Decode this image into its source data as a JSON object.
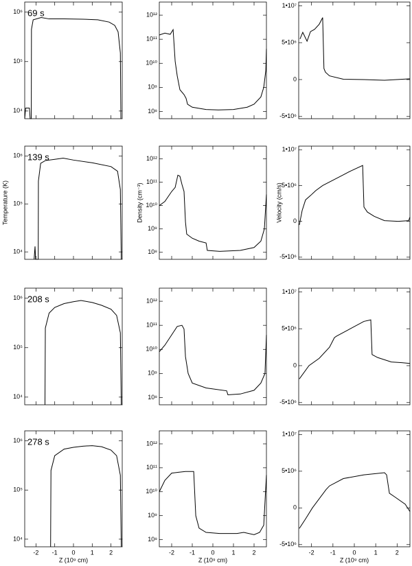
{
  "chart_data": [
    {
      "type": "line",
      "annotation": "69 s",
      "color": "#000000",
      "log_scale": true,
      "xtick_labels": false,
      "x": [
        -2.6,
        -2.55,
        -2.35,
        -2.31,
        -2.25,
        -2.24,
        -2.15,
        -1.72,
        -1.3,
        -0.5,
        0.5,
        1.3,
        1.9,
        2.2,
        2.38,
        2.5,
        2.53
      ],
      "values": [
        7000,
        11500,
        11500,
        7000,
        7000,
        450000,
        700000,
        780000,
        730000,
        730000,
        720000,
        700000,
        630000,
        540000,
        400000,
        150000,
        7000
      ],
      "xlim": [
        -2.6,
        2.6
      ],
      "xticks": [
        -2,
        -1,
        0,
        1,
        2
      ],
      "ylim": [
        7000,
        1600000
      ],
      "yticks": [
        {
          "value": 10000,
          "label": "10⁴"
        },
        {
          "value": 100000,
          "label": "10⁵"
        },
        {
          "value": 1000000,
          "label": "10⁶"
        }
      ]
    },
    {
      "type": "line",
      "color": "#000000",
      "log_scale": true,
      "xtick_labels": false,
      "x": [
        -2.6,
        -2.33,
        -2.07,
        -1.93,
        -1.83,
        -1.73,
        -1.6,
        -1.4,
        -1.3,
        -1.23,
        -1.0,
        -0.33,
        0.27,
        1.0,
        1.67,
        2.0,
        2.33,
        2.47,
        2.57,
        2.6
      ],
      "values": [
        150000000000.0,
        180000000000.0,
        160000000000.0,
        250000000000.0,
        12000000000.0,
        3000000000.0,
        800000000.0,
        500000000.0,
        350000000.0,
        200000000.0,
        150000000.0,
        120000000.0,
        115000000.0,
        120000000.0,
        150000000.0,
        200000000.0,
        400000000.0,
        1000000000.0,
        5000000000.0,
        40000000000.0
      ],
      "xlim": [
        -2.6,
        2.6
      ],
      "xticks": [
        -2,
        -1,
        0,
        1,
        2
      ],
      "ylim": [
        50000000.0,
        3500000000000.0
      ],
      "yticks": [
        {
          "value": 100000000.0,
          "label": "10⁸"
        },
        {
          "value": 1000000000.0,
          "label": "10⁹"
        },
        {
          "value": 10000000000.0,
          "label": "10¹⁰"
        },
        {
          "value": 100000000000.0,
          "label": "10¹¹"
        },
        {
          "value": 1000000000000.0,
          "label": "10¹²"
        }
      ]
    },
    {
      "type": "line",
      "color": "#000000",
      "log_scale": false,
      "xtick_labels": false,
      "x": [
        -2.54,
        -2.41,
        -2.21,
        -2.05,
        -1.86,
        -1.64,
        -1.48,
        -1.42,
        -1.35,
        -1.16,
        -0.51,
        0.45,
        1.41,
        2.6
      ],
      "values": [
        5500000,
        6400000,
        5200000,
        6500000,
        6800000,
        7500000,
        8400000,
        1500000,
        1000000,
        500000,
        50000,
        0,
        -100000,
        100000
      ],
      "xlim": [
        -2.6,
        2.6
      ],
      "xticks": [
        -2,
        -1,
        0,
        1,
        2
      ],
      "ylim": [
        -5300000,
        10500000
      ],
      "yticks": [
        {
          "value": -5000000,
          "label": "-5•10⁶"
        },
        0,
        {
          "value": 5000000,
          "label": "5•10⁶"
        },
        {
          "value": 10000000,
          "label": "1•10⁷"
        }
      ]
    },
    {
      "type": "line",
      "annotation": "139 s",
      "y_label": "Temperature (K)",
      "color": "#000000",
      "log_scale": true,
      "xtick_labels": false,
      "x": [
        -2.1,
        -2.05,
        -2.02,
        -1.88,
        -1.87,
        -1.75,
        -1.5,
        -1,
        -0.55,
        0,
        1,
        2,
        2.35,
        2.5,
        2.55
      ],
      "values": [
        7000,
        13000,
        7000,
        7000,
        300000,
        700000,
        800000,
        850000,
        900000,
        820000,
        720000,
        600000,
        480000,
        200000,
        7000
      ],
      "xlim": [
        -2.6,
        2.6
      ],
      "xticks": [
        -2,
        -1,
        0,
        1,
        2
      ],
      "ylim": [
        7000,
        1600000
      ],
      "yticks": [
        {
          "value": 10000,
          "label": "10⁴"
        },
        {
          "value": 100000,
          "label": "10⁵"
        },
        {
          "value": 1000000,
          "label": "10⁶"
        }
      ]
    },
    {
      "type": "line",
      "y_label": "Density (cm⁻³)",
      "color": "#000000",
      "log_scale": true,
      "xtick_labels": false,
      "x": [
        -2.6,
        -2.33,
        -2.0,
        -1.83,
        -1.7,
        -1.6,
        -1.5,
        -1.4,
        -1.33,
        -1.27,
        -1.0,
        -0.67,
        -0.33,
        -0.27,
        0.33,
        1.33,
        2.0,
        2.33,
        2.5,
        2.6
      ],
      "values": [
        10000000000.0,
        15000000000.0,
        40000000000.0,
        60000000000.0,
        200000000000.0,
        180000000000.0,
        80000000000.0,
        40000000000.0,
        2000000000.0,
        600000000.0,
        400000000.0,
        300000000.0,
        250000000.0,
        120000000.0,
        110000000.0,
        120000000.0,
        160000000.0,
        300000000.0,
        1000000000.0,
        30000000000.0
      ],
      "xlim": [
        -2.6,
        2.6
      ],
      "xticks": [
        -2,
        -1,
        0,
        1,
        2
      ],
      "ylim": [
        50000000.0,
        3500000000000.0
      ],
      "yticks": [
        {
          "value": 100000000.0,
          "label": "10⁸"
        },
        {
          "value": 1000000000.0,
          "label": "10⁹"
        },
        {
          "value": 10000000000.0,
          "label": "10¹⁰"
        },
        {
          "value": 100000000000.0,
          "label": "10¹¹"
        },
        {
          "value": 1000000000000.0,
          "label": "10¹²"
        }
      ]
    },
    {
      "type": "line",
      "y_label": "Velocity (cm/s)",
      "color": "#000000",
      "log_scale": false,
      "xtick_labels": false,
      "x": [
        -2.57,
        -2.44,
        -2.28,
        -2.05,
        -1.8,
        -1.48,
        -0.83,
        -0.19,
        0.39,
        0.45,
        0.61,
        0.93,
        1.41,
        2.05,
        2.54,
        2.6
      ],
      "values": [
        -500000,
        1500000,
        3000000,
        3600000,
        4300000,
        5000000,
        6000000,
        7000000,
        7800000,
        2000000,
        1300000,
        700000,
        100000,
        0,
        100000,
        600000
      ],
      "xlim": [
        -2.6,
        2.6
      ],
      "xticks": [
        -2,
        -1,
        0,
        1,
        2
      ],
      "ylim": [
        -5300000,
        10500000
      ],
      "yticks": [
        {
          "value": -5000000,
          "label": "-5•10⁶"
        },
        0,
        {
          "value": 5000000,
          "label": "5•10⁶"
        },
        {
          "value": 10000000,
          "label": "1•10⁷"
        }
      ]
    },
    {
      "type": "line",
      "annotation": "208 s",
      "color": "#000000",
      "log_scale": true,
      "xtick_labels": false,
      "x": [
        -1.52,
        -1.5,
        -1.3,
        -1,
        -0.5,
        0,
        0.4,
        1,
        1.5,
        2,
        2.3,
        2.5,
        2.55
      ],
      "values": [
        7000,
        250000,
        500000,
        650000,
        780000,
        850000,
        900000,
        820000,
        720000,
        600000,
        450000,
        200000,
        7000
      ],
      "xlim": [
        -2.6,
        2.6
      ],
      "xticks": [
        -2,
        -1,
        0,
        1,
        2
      ],
      "ylim": [
        7000,
        1600000
      ],
      "yticks": [
        {
          "value": 10000,
          "label": "10⁴"
        },
        {
          "value": 100000,
          "label": "10⁵"
        },
        {
          "value": 1000000,
          "label": "10⁶"
        }
      ]
    },
    {
      "type": "line",
      "color": "#000000",
      "log_scale": true,
      "xtick_labels": false,
      "x": [
        -2.6,
        -2.33,
        -2.0,
        -1.73,
        -1.5,
        -1.4,
        -1.33,
        -1.2,
        -1.0,
        -0.33,
        0.67,
        0.73,
        1.33,
        2.0,
        2.33,
        2.53,
        2.6
      ],
      "values": [
        8000000000.0,
        15000000000.0,
        40000000000.0,
        90000000000.0,
        100000000000.0,
        70000000000.0,
        5000000000.0,
        1000000000.0,
        400000000.0,
        250000000.0,
        190000000.0,
        130000000.0,
        140000000.0,
        200000000.0,
        400000000.0,
        1000000000.0,
        40000000000.0
      ],
      "xlim": [
        -2.6,
        2.6
      ],
      "xticks": [
        -2,
        -1,
        0,
        1,
        2
      ],
      "ylim": [
        50000000.0,
        3500000000000.0
      ],
      "yticks": [
        {
          "value": 100000000.0,
          "label": "10⁸"
        },
        {
          "value": 1000000000.0,
          "label": "10⁹"
        },
        {
          "value": 10000000000.0,
          "label": "10¹⁰"
        },
        {
          "value": 100000000000.0,
          "label": "10¹¹"
        },
        {
          "value": 1000000000000.0,
          "label": "10¹²"
        }
      ]
    },
    {
      "type": "line",
      "color": "#000000",
      "log_scale": false,
      "xtick_labels": false,
      "x": [
        -2.57,
        -2.12,
        -1.64,
        -1.16,
        -0.93,
        -0.83,
        -0.19,
        0.45,
        0.77,
        0.83,
        1.09,
        1.73,
        2.22,
        2.6
      ],
      "values": [
        -1800000,
        0,
        1000000,
        2500000,
        3800000,
        4000000,
        5000000,
        6000000,
        6200000,
        1500000,
        1100000,
        500000,
        400000,
        300000
      ],
      "xlim": [
        -2.6,
        2.6
      ],
      "xticks": [
        -2,
        -1,
        0,
        1,
        2
      ],
      "ylim": [
        -5300000,
        10500000
      ],
      "yticks": [
        {
          "value": -5000000,
          "label": "-5•10⁶"
        },
        0,
        {
          "value": 5000000,
          "label": "5•10⁶"
        },
        {
          "value": 10000000,
          "label": "1•10⁷"
        }
      ]
    },
    {
      "type": "line",
      "annotation": "278 s",
      "x_label": "Z (10⁹ cm)",
      "color": "#000000",
      "log_scale": true,
      "xtick_labels": true,
      "x": [
        -1.22,
        -1.2,
        -1,
        -0.5,
        0,
        0.5,
        1,
        1.5,
        2,
        2.3,
        2.5,
        2.55
      ],
      "values": [
        7000,
        250000,
        500000,
        680000,
        740000,
        780000,
        800000,
        760000,
        650000,
        500000,
        200000,
        7000
      ],
      "xlim": [
        -2.6,
        2.6
      ],
      "xticks": [
        -2,
        -1,
        0,
        1,
        2
      ],
      "ylim": [
        7000,
        1600000
      ],
      "yticks": [
        {
          "value": 10000,
          "label": "10⁴"
        },
        {
          "value": 100000,
          "label": "10⁵"
        },
        {
          "value": 1000000,
          "label": "10⁶"
        }
      ]
    },
    {
      "type": "line",
      "x_label": "Z (10⁹ cm)",
      "color": "#000000",
      "log_scale": true,
      "xtick_labels": true,
      "x": [
        -2.6,
        -2.33,
        -2.0,
        -1.67,
        -1.33,
        -0.93,
        -0.83,
        -0.67,
        -0.33,
        0.33,
        1.17,
        1.5,
        2.0,
        2.27,
        2.47,
        2.6
      ],
      "values": [
        10000000000.0,
        30000000000.0,
        60000000000.0,
        65000000000.0,
        70000000000.0,
        70000000000.0,
        1000000000.0,
        300000000.0,
        200000000.0,
        180000000.0,
        180000000.0,
        200000000.0,
        160000000.0,
        200000000.0,
        400000000.0,
        50000000000.0
      ],
      "xlim": [
        -2.6,
        2.6
      ],
      "xticks": [
        -2,
        -1,
        0,
        1,
        2
      ],
      "ylim": [
        50000000.0,
        3500000000000.0
      ],
      "yticks": [
        {
          "value": 100000000.0,
          "label": "10⁸"
        },
        {
          "value": 1000000000.0,
          "label": "10⁹"
        },
        {
          "value": 10000000000.0,
          "label": "10¹⁰"
        },
        {
          "value": 100000000000.0,
          "label": "10¹¹"
        },
        {
          "value": 1000000000000.0,
          "label": "10¹²"
        }
      ]
    },
    {
      "type": "line",
      "x_label": "Z (10⁹ cm)",
      "color": "#000000",
      "log_scale": false,
      "xtick_labels": true,
      "x": [
        -2.57,
        -2.28,
        -1.96,
        -1.32,
        -1.16,
        -0.51,
        0.45,
        1.41,
        1.51,
        1.64,
        1.89,
        2.38,
        2.6
      ],
      "values": [
        -2800000,
        -1500000,
        0,
        2500000,
        3000000,
        4000000,
        4500000,
        4800000,
        4500000,
        2000000,
        1500000,
        500000,
        -500000
      ],
      "xlim": [
        -2.6,
        2.6
      ],
      "xticks": [
        -2,
        -1,
        0,
        1,
        2
      ],
      "ylim": [
        -5300000,
        10500000
      ],
      "yticks": [
        {
          "value": -5000000,
          "label": "-5•10⁶"
        },
        0,
        {
          "value": 5000000,
          "label": "5•10⁶"
        },
        {
          "value": 10000000,
          "label": "1•10⁷"
        }
      ]
    }
  ]
}
